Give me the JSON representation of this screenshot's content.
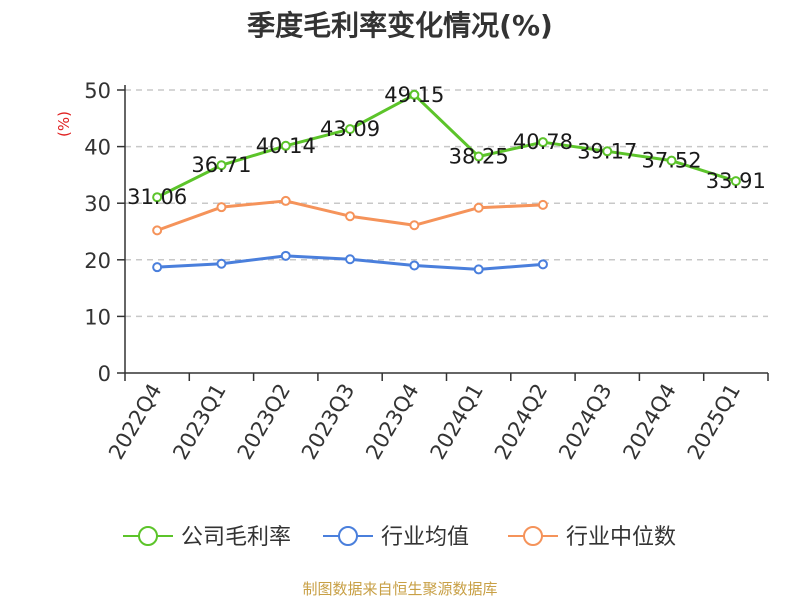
{
  "chart_data": {
    "type": "line",
    "title": "季度毛利率变化情况(%)",
    "ylabel": "(%)",
    "xlabel": "",
    "ylim": [
      0,
      50
    ],
    "yticks": [
      0,
      10,
      20,
      30,
      40,
      50
    ],
    "grid": true,
    "legend_position": "bottom",
    "categories": [
      "2022Q4",
      "2023Q1",
      "2023Q2",
      "2023Q3",
      "2023Q4",
      "2024Q1",
      "2024Q2",
      "2024Q3",
      "2024Q4",
      "2025Q1"
    ],
    "series": [
      {
        "name": "公司毛利率",
        "color": "#5cc42a",
        "values": [
          31.06,
          36.71,
          40.14,
          43.09,
          49.15,
          38.25,
          40.78,
          39.17,
          37.52,
          33.91
        ],
        "labels": [
          "31.06",
          "36.71",
          "40.14",
          "43.09",
          "49.15",
          "38.25",
          "40.78",
          "39.17",
          "37.52",
          "33.91"
        ]
      },
      {
        "name": "行业均值",
        "color": "#4a7fdc",
        "values": [
          18.7,
          19.3,
          20.7,
          20.1,
          19.0,
          18.3,
          19.2,
          null,
          null,
          null
        ]
      },
      {
        "name": "行业中位数",
        "color": "#f5935a",
        "values": [
          25.2,
          29.3,
          30.4,
          27.7,
          26.1,
          29.2,
          29.7,
          null,
          null,
          null
        ]
      }
    ]
  },
  "source_note": "制图数据来自恒生聚源数据库"
}
